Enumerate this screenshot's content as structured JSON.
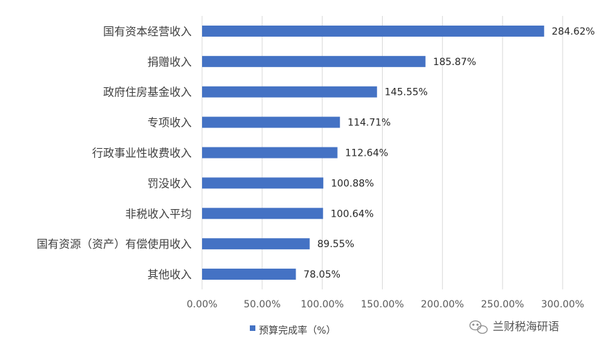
{
  "chart_data": {
    "type": "bar",
    "orientation": "horizontal",
    "categories": [
      "国有资本经营收入",
      "捐赠收入",
      "政府住房基金收入",
      "专项收入",
      "行政事业性收费收入",
      "罚没收入",
      "非税收入平均",
      "国有资源（资产）有偿使用收入",
      "其他收入"
    ],
    "series": [
      {
        "name": "预算完成率（%）",
        "values": [
          284.62,
          185.87,
          145.55,
          114.71,
          112.64,
          100.88,
          100.64,
          89.55,
          78.05
        ],
        "value_labels": [
          "284.62%",
          "185.87%",
          "145.55%",
          "114.71%",
          "112.64%",
          "100.88%",
          "100.64%",
          "89.55%",
          "78.05%"
        ]
      }
    ],
    "highlight_index": 6,
    "xlim": [
      0,
      300
    ],
    "xticks": [
      0,
      50,
      100,
      150,
      200,
      250,
      300
    ],
    "xtick_labels": [
      "0.00%",
      "50.00%",
      "100.00%",
      "150.00%",
      "200.00%",
      "250.00%",
      "300.00%"
    ],
    "grid": true,
    "legend_position": "bottom",
    "colors": {
      "bar": "#4472c4",
      "highlight_label": "#e02020",
      "grid": "#d9d9d9",
      "label": "#262626"
    }
  },
  "watermark": {
    "text": "兰财税海研语",
    "icon": "wechat-icon"
  }
}
